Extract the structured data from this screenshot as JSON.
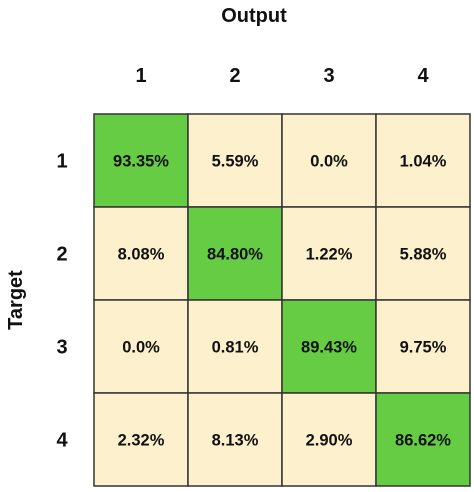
{
  "chart_data": {
    "type": "heatmap",
    "title": "",
    "xlabel": "Output",
    "ylabel": "Target",
    "x_categories": [
      "1",
      "2",
      "3",
      "4"
    ],
    "y_categories": [
      "1",
      "2",
      "3",
      "4"
    ],
    "values": [
      [
        "93.35%",
        "5.59%",
        "0.0%",
        "1.04%"
      ],
      [
        "8.08%",
        "84.80%",
        "1.22%",
        "5.88%"
      ],
      [
        "0.0%",
        "0.81%",
        "89.43%",
        "9.75%"
      ],
      [
        "2.32%",
        "8.13%",
        "2.90%",
        "86.62%"
      ]
    ],
    "grid": true,
    "legend": "none"
  },
  "colors": {
    "diagonal_fill": "#66cc44",
    "offdiagonal_fill": "#fdf0cc",
    "border": "#333333"
  }
}
